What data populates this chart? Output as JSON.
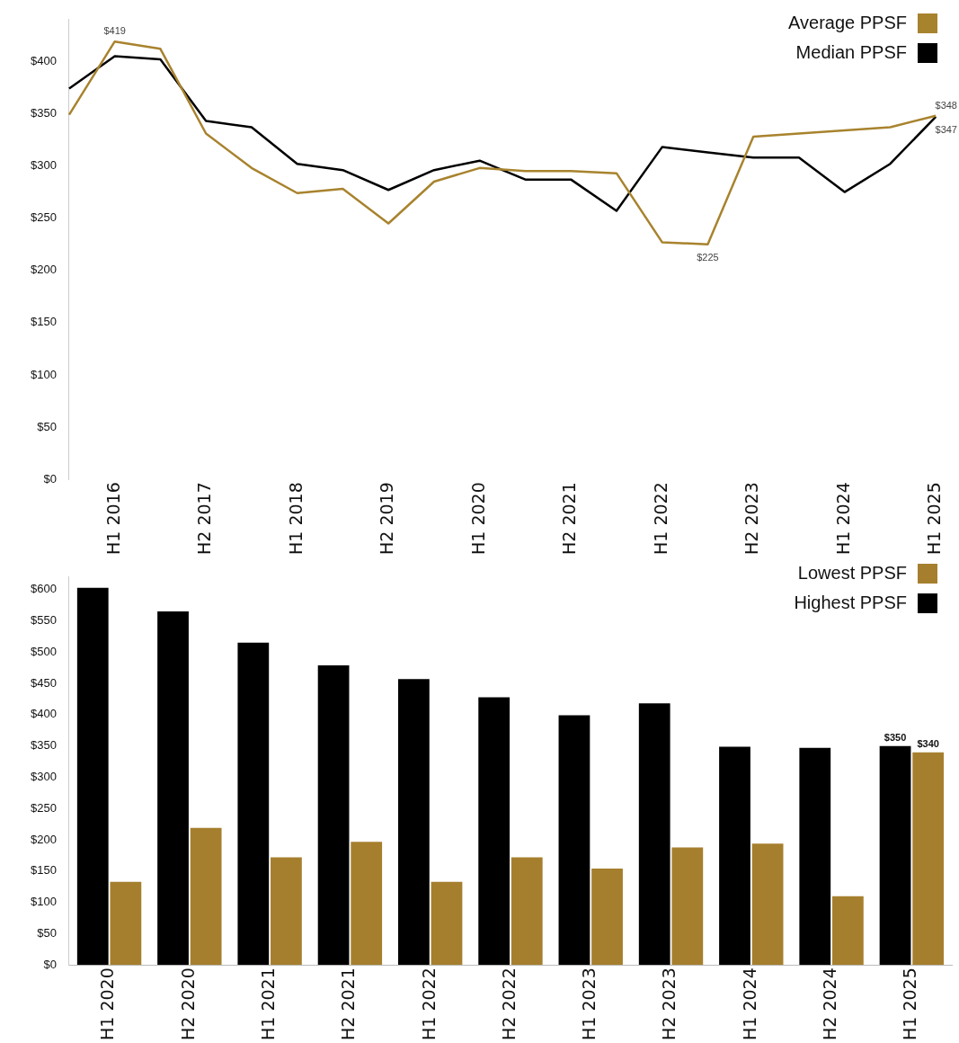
{
  "chart_data": [
    {
      "type": "line",
      "categories": [
        null,
        "H1 2016",
        null,
        "H2 2017",
        null,
        "H1 2018",
        null,
        "H2 2019",
        null,
        "H1 2020",
        null,
        "H2 2021",
        null,
        "H1 2022",
        null,
        "H2 2023",
        null,
        "H1 2024",
        null,
        "H1 2025"
      ],
      "series": [
        {
          "name": "Average PPSF",
          "color": "#a8832e",
          "values": [
            349,
            419,
            412,
            331,
            298,
            274,
            278,
            245,
            285,
            298,
            295,
            295,
            293,
            227,
            225,
            328,
            331,
            334,
            337,
            348
          ],
          "value_labels": [
            null,
            "$419",
            null,
            null,
            null,
            null,
            null,
            null,
            null,
            null,
            null,
            null,
            null,
            null,
            "$225",
            null,
            null,
            null,
            null,
            "$348"
          ]
        },
        {
          "name": "Median PPSF",
          "color": "#000000",
          "values": [
            374,
            405,
            402,
            343,
            337,
            302,
            296,
            277,
            296,
            305,
            287,
            287,
            257,
            318,
            313,
            308,
            308,
            275,
            302,
            347
          ],
          "value_labels": [
            null,
            null,
            null,
            null,
            null,
            null,
            null,
            null,
            null,
            null,
            null,
            null,
            null,
            null,
            null,
            null,
            null,
            null,
            null,
            "$347"
          ]
        }
      ],
      "ylim": [
        0,
        440
      ],
      "yticks": [
        {
          "value": 0,
          "label": "$0"
        },
        {
          "value": 50,
          "label": "$50"
        },
        {
          "value": 100,
          "label": "$100"
        },
        {
          "value": 150,
          "label": "$150"
        },
        {
          "value": 200,
          "label": "$200"
        },
        {
          "value": 250,
          "label": "$250"
        },
        {
          "value": 300,
          "label": "$300"
        },
        {
          "value": 350,
          "label": "$350"
        },
        {
          "value": 400,
          "label": "$400"
        }
      ],
      "grid": false,
      "legend": "top right",
      "marker": "none",
      "line_style": "solid"
    },
    {
      "type": "bar",
      "categories": [
        "H1 2020",
        "H2 2020",
        "H1 2021",
        "H2 2021",
        "H1 2022",
        "H2 2022",
        "H1 2023",
        "H2 2023",
        "H1 2024",
        "H2 2024",
        "H1 2025"
      ],
      "series": [
        {
          "name": "Highest PPSF",
          "color": "#000000",
          "values": [
            603,
            565,
            515,
            479,
            457,
            428,
            399,
            418,
            349,
            347,
            350
          ],
          "value_labels": [
            null,
            null,
            null,
            null,
            null,
            null,
            null,
            null,
            null,
            null,
            "$350"
          ]
        },
        {
          "name": "Lowest PPSF",
          "color": "#a67f2e",
          "values": [
            133,
            219,
            172,
            197,
            133,
            172,
            154,
            188,
            194,
            110,
            340
          ],
          "value_labels": [
            null,
            null,
            null,
            null,
            null,
            null,
            null,
            null,
            null,
            null,
            "$340"
          ]
        }
      ],
      "ylim": [
        0,
        620
      ],
      "yticks": [
        {
          "value": 0,
          "label": "$0"
        },
        {
          "value": 50,
          "label": "$50"
        },
        {
          "value": 100,
          "label": "$100"
        },
        {
          "value": 150,
          "label": "$150"
        },
        {
          "value": 200,
          "label": "$200"
        },
        {
          "value": 250,
          "label": "$250"
        },
        {
          "value": 300,
          "label": "$300"
        },
        {
          "value": 350,
          "label": "$350"
        },
        {
          "value": 400,
          "label": "$400"
        },
        {
          "value": 450,
          "label": "$450"
        },
        {
          "value": 500,
          "label": "$500"
        },
        {
          "value": 550,
          "label": "$550"
        },
        {
          "value": 600,
          "label": "$600"
        }
      ],
      "grid": false,
      "legend": "top right"
    }
  ]
}
